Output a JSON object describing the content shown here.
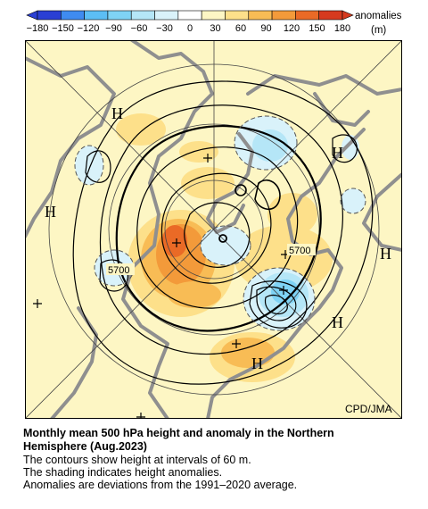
{
  "legend": {
    "tick_labels": [
      "−180",
      "−150",
      "−120",
      "−90",
      "−60",
      "−30",
      "0",
      "30",
      "60",
      "90",
      "120",
      "150",
      "180"
    ],
    "title_line1": "anomalies",
    "title_line2": "(m)",
    "colors": [
      "#2a3fd4",
      "#3f8bf0",
      "#5cbef5",
      "#7fd3f5",
      "#b5e6f7",
      "#d9f2fa",
      "#ffffff",
      "#fdf6c4",
      "#fde08a",
      "#f8bc55",
      "#f39a3a",
      "#ea6a26",
      "#d63a1e"
    ]
  },
  "map": {
    "colors": {
      "background": "#fdf6c4",
      "land": "#8f8f8f",
      "positive_light": "#fde08a",
      "positive_mid": "#f8bc55",
      "positive_strong": "#f39a3a",
      "positive_max": "#ea6a26",
      "negative_light": "#d9f2fa",
      "negative_mid": "#b5e6f7",
      "negative_strong": "#7fd3f5",
      "negative_max": "#5cbef5"
    },
    "high_labels": [
      "H",
      "H",
      "H",
      "H",
      "H",
      "H"
    ],
    "contour_labels": [
      "5700",
      "5700"
    ],
    "credit": "CPD/JMA"
  },
  "caption": {
    "title_line1": "Monthly mean 500 hPa height and anomaly in the Northern",
    "title_line2": "Hemisphere (Aug.2023)",
    "line1": "The contours show height at intervals of 60 m.",
    "line2": "The shading indicates height anomalies.",
    "line3": "Anomalies are deviations from the 1991–2020 average."
  }
}
